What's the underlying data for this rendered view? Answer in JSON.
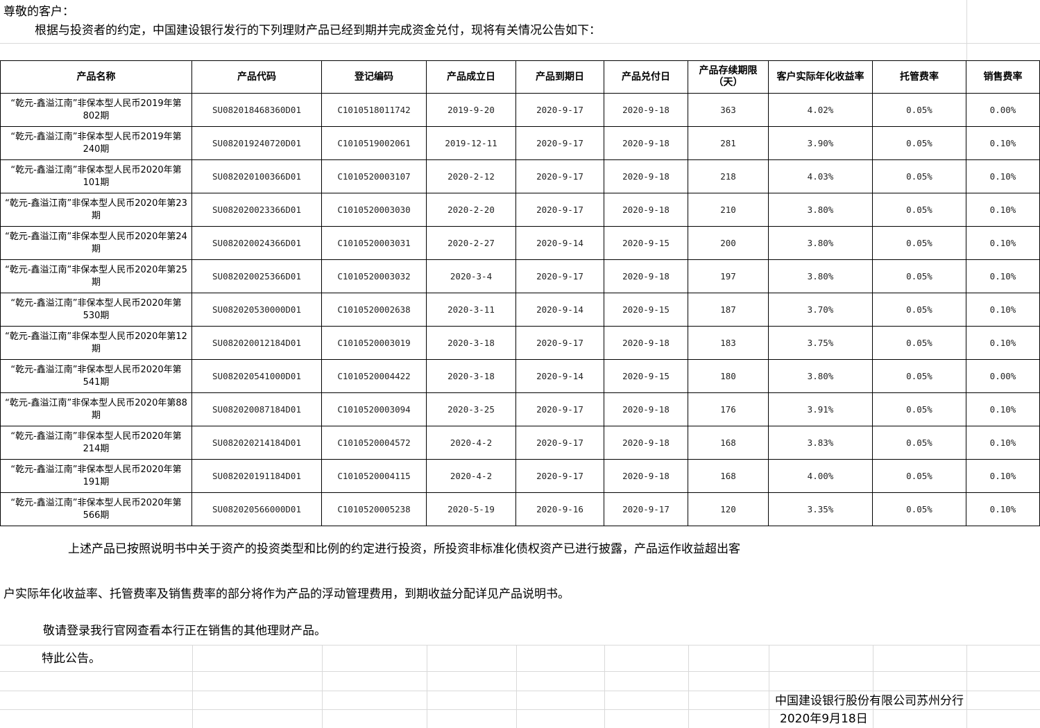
{
  "greeting": "尊敬的客户：",
  "intro": "根据与投资者的约定，中国建设银行发行的下列理财产品已经到期并完成资金兑付，现将有关情况公告如下：",
  "table": {
    "headers": [
      "产品名称",
      "产品代码",
      "登记编码",
      "产品成立日",
      "产品到期日",
      "产品兑付日",
      "产品存续期限（天）",
      "客户实际年化收益率",
      "托管费率",
      "销售费率"
    ],
    "rows": [
      [
        "“乾元-鑫溢江南”非保本型人民币2019年第802期",
        "SU082018468360D01",
        "C1010518011742",
        "2019-9-20",
        "2020-9-17",
        "2020-9-18",
        "363",
        "4.02%",
        "0.05%",
        "0.00%"
      ],
      [
        "“乾元-鑫溢江南”非保本型人民币2019年第240期",
        "SU082019240720D01",
        "C1010519002061",
        "2019-12-11",
        "2020-9-17",
        "2020-9-18",
        "281",
        "3.90%",
        "0.05%",
        "0.10%"
      ],
      [
        "“乾元-鑫溢江南”非保本型人民币2020年第101期",
        "SU082020100366D01",
        "C1010520003107",
        "2020-2-12",
        "2020-9-17",
        "2020-9-18",
        "218",
        "4.03%",
        "0.05%",
        "0.10%"
      ],
      [
        "“乾元-鑫溢江南”非保本型人民币2020年第23期",
        "SU082020023366D01",
        "C1010520003030",
        "2020-2-20",
        "2020-9-17",
        "2020-9-18",
        "210",
        "3.80%",
        "0.05%",
        "0.10%"
      ],
      [
        "“乾元-鑫溢江南”非保本型人民币2020年第24期",
        "SU082020024366D01",
        "C1010520003031",
        "2020-2-27",
        "2020-9-14",
        "2020-9-15",
        "200",
        "3.80%",
        "0.05%",
        "0.10%"
      ],
      [
        "“乾元-鑫溢江南”非保本型人民币2020年第25期",
        "SU082020025366D01",
        "C1010520003032",
        "2020-3-4",
        "2020-9-17",
        "2020-9-18",
        "197",
        "3.80%",
        "0.05%",
        "0.10%"
      ],
      [
        "“乾元-鑫溢江南”非保本型人民币2020年第530期",
        "SU082020530000D01",
        "C1010520002638",
        "2020-3-11",
        "2020-9-14",
        "2020-9-15",
        "187",
        "3.70%",
        "0.05%",
        "0.10%"
      ],
      [
        "“乾元-鑫溢江南”非保本型人民币2020年第12期",
        "SU082020012184D01",
        "C1010520003019",
        "2020-3-18",
        "2020-9-17",
        "2020-9-18",
        "183",
        "3.75%",
        "0.05%",
        "0.10%"
      ],
      [
        "“乾元-鑫溢江南”非保本型人民币2020年第541期",
        "SU082020541000D01",
        "C1010520004422",
        "2020-3-18",
        "2020-9-14",
        "2020-9-15",
        "180",
        "3.80%",
        "0.05%",
        "0.00%"
      ],
      [
        "“乾元-鑫溢江南”非保本型人民币2020年第88期",
        "SU082020087184D01",
        "C1010520003094",
        "2020-3-25",
        "2020-9-17",
        "2020-9-18",
        "176",
        "3.91%",
        "0.05%",
        "0.10%"
      ],
      [
        "“乾元-鑫溢江南”非保本型人民币2020年第214期",
        "SU082020214184D01",
        "C1010520004572",
        "2020-4-2",
        "2020-9-17",
        "2020-9-18",
        "168",
        "3.83%",
        "0.05%",
        "0.10%"
      ],
      [
        "“乾元-鑫溢江南”非保本型人民币2020年第191期",
        "SU082020191184D01",
        "C1010520004115",
        "2020-4-2",
        "2020-9-17",
        "2020-9-18",
        "168",
        "4.00%",
        "0.05%",
        "0.10%"
      ],
      [
        "“乾元-鑫溢江南”非保本型人民币2020年第566期",
        "SU082020566000D01",
        "C1010520005238",
        "2020-5-19",
        "2020-9-16",
        "2020-9-17",
        "120",
        "3.35%",
        "0.05%",
        "0.10%"
      ]
    ]
  },
  "paragraph1": "上述产品已按照说明书中关于资产的投资类型和比例的约定进行投资，所投资非标准化债权资产已进行披露，产品运作收益超出客",
  "paragraph2": "户实际年化收益率、托管费率及销售费率的部分将作为产品的浮动管理费用，到期收益分配详见产品说明书。",
  "paragraph3": "敬请登录我行官网查看本行正在销售的其他理财产品。",
  "closing": "特此公告。",
  "signature": {
    "bank": "中国建设银行股份有限公司苏州分行",
    "date": "2020年9月18日"
  }
}
